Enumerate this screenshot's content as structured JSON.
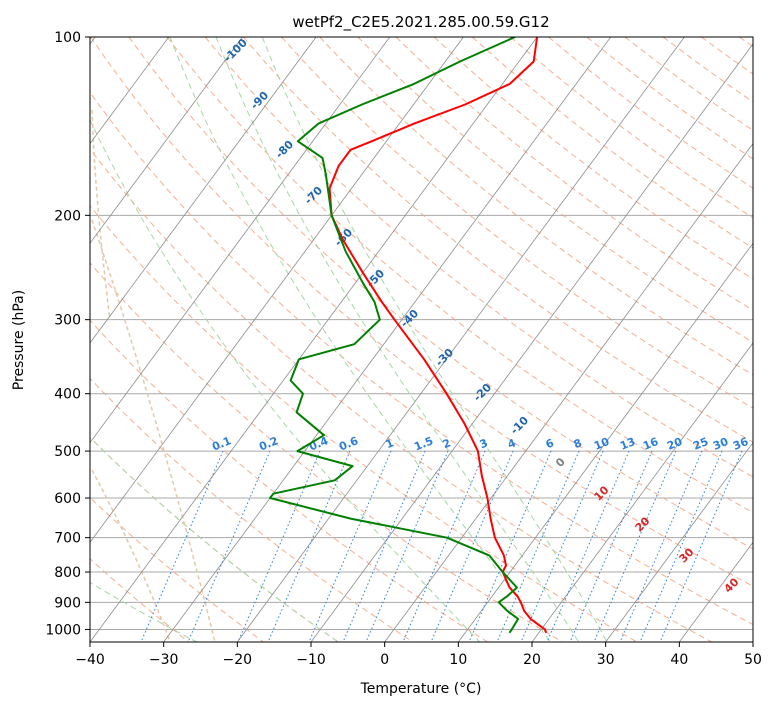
{
  "chart_data": {
    "type": "line",
    "title": "wetPf2_C2E5.2021.285.00.59.G12",
    "xlabel": "Temperature (°C)",
    "ylabel": "Pressure (hPa)",
    "xlim": [
      -40,
      50
    ],
    "ylim": [
      1050,
      100
    ],
    "y_scale": "log",
    "grid": true,
    "x_ticks": [
      "−40",
      "−30",
      "−20",
      "−10",
      "0",
      "10",
      "20",
      "30",
      "40",
      "50"
    ],
    "y_ticks": [
      "100",
      "200",
      "300",
      "400",
      "500",
      "600",
      "700",
      "800",
      "900",
      "1000"
    ],
    "series": [
      {
        "color": "#ff0000",
        "points": [
          [
            100,
            -40.0
          ],
          [
            110,
            -38.0
          ],
          [
            120,
            -39.0
          ],
          [
            130,
            -43.0
          ],
          [
            140,
            -48.0
          ],
          [
            150,
            -52.0
          ],
          [
            155,
            -54.0
          ],
          [
            165,
            -54.0
          ],
          [
            180,
            -53.0
          ],
          [
            200,
            -50.0
          ],
          [
            220,
            -46.0
          ],
          [
            250,
            -40.0
          ],
          [
            280,
            -34.5
          ],
          [
            300,
            -31.0
          ],
          [
            350,
            -23.0
          ],
          [
            400,
            -16.5
          ],
          [
            450,
            -11.0
          ],
          [
            500,
            -6.5
          ],
          [
            550,
            -3.5
          ],
          [
            600,
            -0.5
          ],
          [
            650,
            2.0
          ],
          [
            700,
            4.5
          ],
          [
            750,
            7.5
          ],
          [
            780,
            8.8
          ],
          [
            800,
            9.0
          ],
          [
            850,
            11.5
          ],
          [
            880,
            13.5
          ],
          [
            900,
            14.5
          ],
          [
            930,
            15.8
          ],
          [
            960,
            17.5
          ],
          [
            1000,
            20.5
          ],
          [
            1013,
            21.0
          ]
        ]
      },
      {
        "color": "#008000",
        "points": [
          [
            100,
            -43.0
          ],
          [
            110,
            -48.0
          ],
          [
            120,
            -52.0
          ],
          [
            130,
            -57.0
          ],
          [
            140,
            -61.0
          ],
          [
            150,
            -62.0
          ],
          [
            160,
            -57.0
          ],
          [
            170,
            -55.0
          ],
          [
            200,
            -50.0
          ],
          [
            230,
            -44.5
          ],
          [
            260,
            -39.0
          ],
          [
            280,
            -35.5
          ],
          [
            300,
            -33.0
          ],
          [
            330,
            -34.0
          ],
          [
            350,
            -40.0
          ],
          [
            380,
            -39.0
          ],
          [
            400,
            -36.0
          ],
          [
            430,
            -35.0
          ],
          [
            470,
            -29.0
          ],
          [
            500,
            -31.0
          ],
          [
            530,
            -22.0
          ],
          [
            560,
            -23.0
          ],
          [
            590,
            -30.0
          ],
          [
            600,
            -30.0
          ],
          [
            650,
            -17.0
          ],
          [
            700,
            -2.0
          ],
          [
            750,
            5.5
          ],
          [
            800,
            9.0
          ],
          [
            850,
            12.5
          ],
          [
            880,
            12.0
          ],
          [
            900,
            11.5
          ],
          [
            930,
            13.5
          ],
          [
            960,
            15.8
          ],
          [
            1000,
            16.0
          ],
          [
            1013,
            16.0
          ]
        ]
      }
    ],
    "dry_adiabat_labels": [
      "-100",
      "-90",
      "-80",
      "-70",
      "-60",
      "-50",
      "-40",
      "-30",
      "-20",
      "-10",
      "0",
      "10",
      "20",
      "30",
      "40"
    ],
    "moist_adiabat_labels": [
      "10",
      "20",
      "30",
      "40"
    ],
    "mixing_ratio_labels": [
      "0.1",
      "0.2",
      "0.4",
      "0.6",
      "1",
      "1.5",
      "2",
      "3",
      "4",
      "6",
      "8",
      "10",
      "13",
      "16",
      "20",
      "25",
      "30",
      "36"
    ],
    "colors": {
      "temperature": "#ff0000",
      "dewpoint": "#008000",
      "isobar": "#a8a8a8",
      "isotherm": "#8c8c8c",
      "dry_adiabat": "#f4a582",
      "moist_adiabat": "#a6d6a6",
      "mixing_ratio": "#2c7fd6",
      "dry_label": "#2166ac",
      "moist_label": "#d62728",
      "zero_label": "#7f7f7f"
    }
  }
}
